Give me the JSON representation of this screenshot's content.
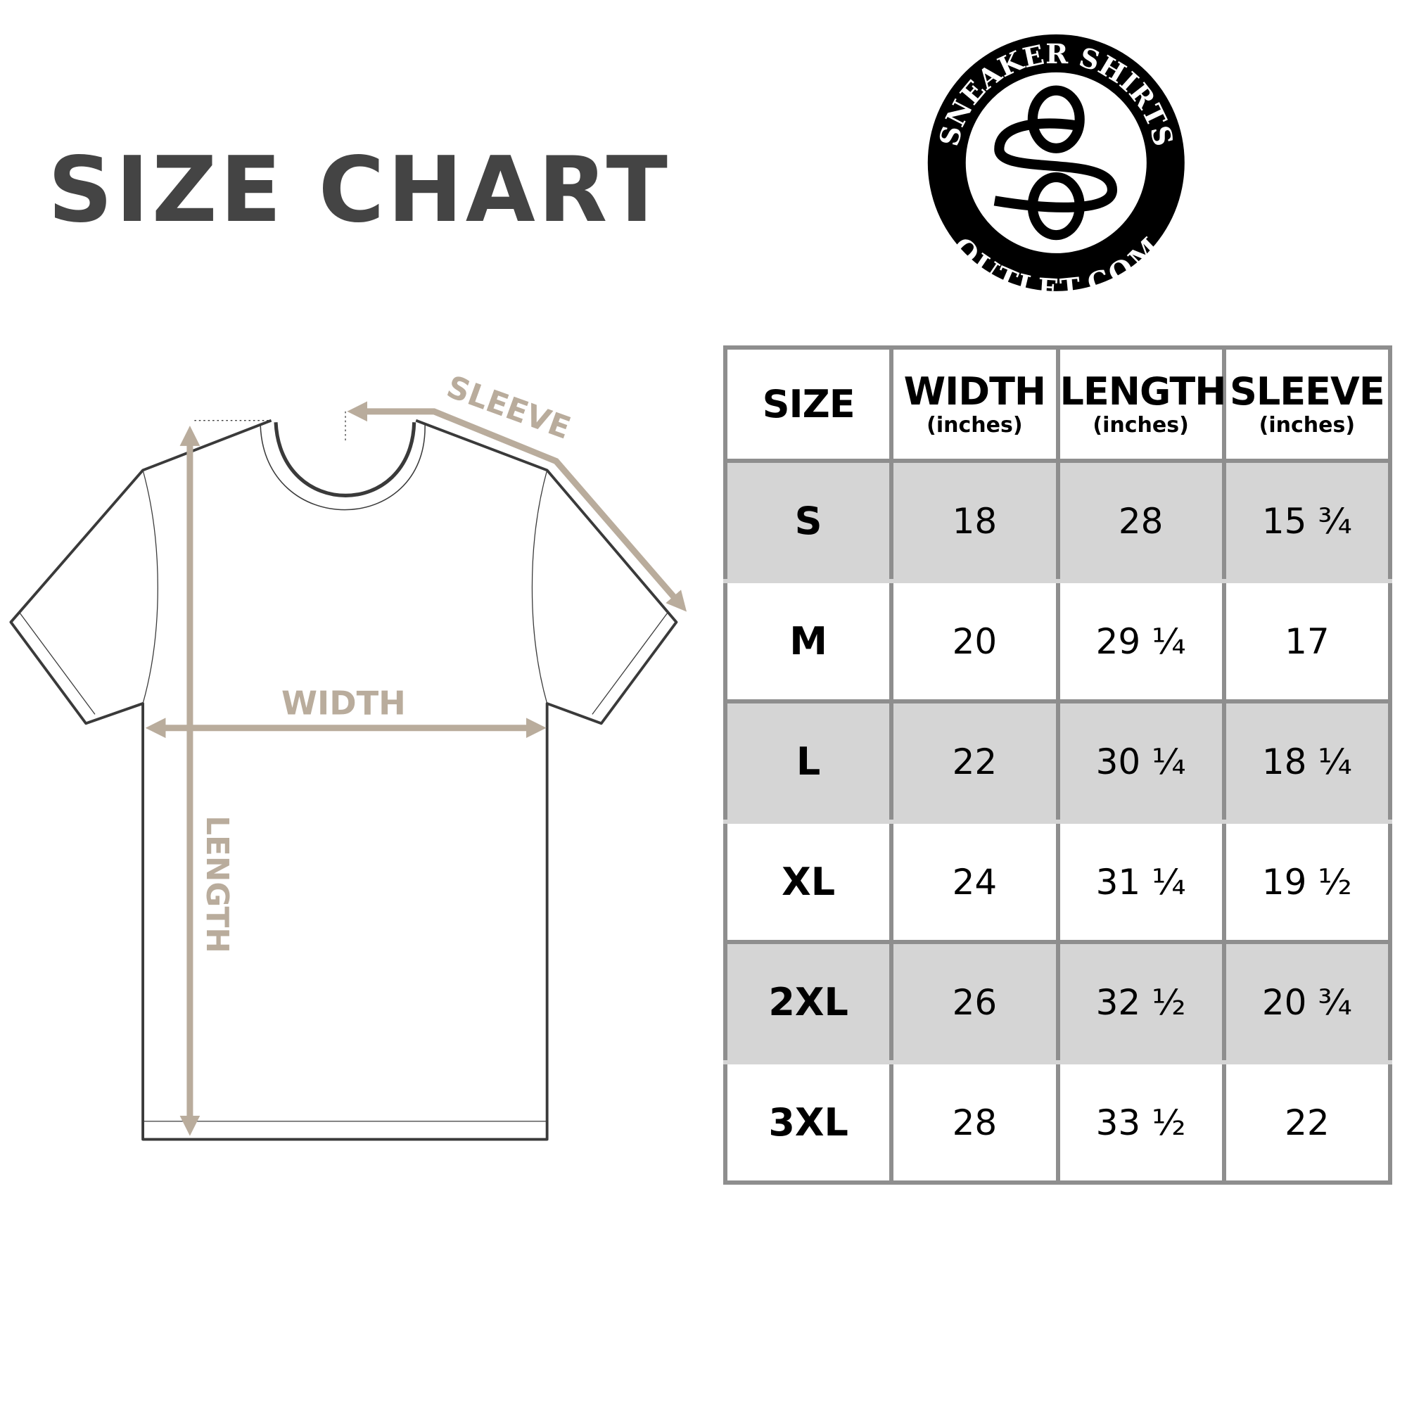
{
  "title": "SIZE CHART",
  "logo": {
    "top_text": "SNEAKER SHIRTS",
    "bottom_text": "OUTLET.COM",
    "monogram": "SO"
  },
  "diagram": {
    "sleeve_label": "SLEEVE",
    "width_label": "WIDTH",
    "length_label": "LENGTH"
  },
  "colors": {
    "measure": "#b9ac9c",
    "title": "#444444",
    "row_shade": "#d5d5d5",
    "grid": "#8e8e8e"
  },
  "table": {
    "headers": [
      {
        "label": "SIZE",
        "unit": ""
      },
      {
        "label": "WIDTH",
        "unit": "(inches)"
      },
      {
        "label": "LENGTH",
        "unit": "(inches)"
      },
      {
        "label": "SLEEVE",
        "unit": "(inches)"
      }
    ],
    "rows": [
      [
        "S",
        "18",
        "28",
        "15 ¾"
      ],
      [
        "M",
        "20",
        "29 ¼",
        "17"
      ],
      [
        "L",
        "22",
        "30 ¼",
        "18 ¼"
      ],
      [
        "XL",
        "24",
        "31 ¼",
        "19 ½"
      ],
      [
        "2XL",
        "26",
        "32 ½",
        "20 ¾"
      ],
      [
        "3XL",
        "28",
        "33 ½",
        "22"
      ]
    ]
  }
}
